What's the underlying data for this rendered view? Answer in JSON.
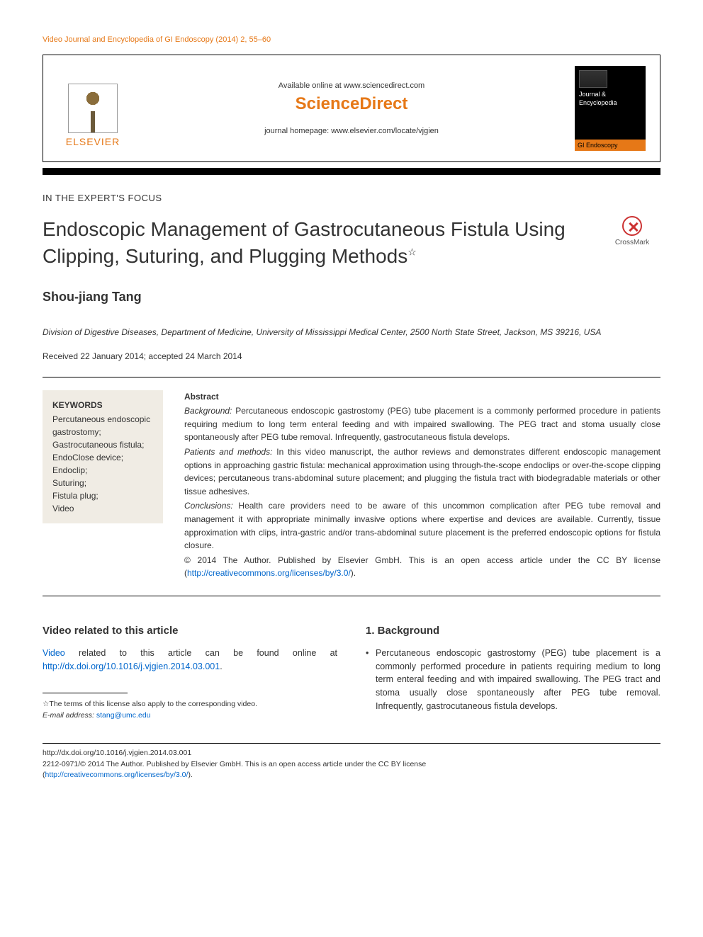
{
  "journal_ref": {
    "name": "Video Journal and Encyclopedia of GI Endoscopy",
    "year": "(2014)",
    "volume": "2",
    "pages": "55–60"
  },
  "publisher_bar": {
    "available": "Available online at www.sciencedirect.com",
    "brand": "ScienceDirect",
    "homepage_label": "journal homepage:",
    "homepage_url": "www.elsevier.com/locate/vjgien",
    "elsevier": "ELSEVIER",
    "cover_line1": "Journal &",
    "cover_line2": "Encyclopedia",
    "cover_bottom": "GI Endoscopy"
  },
  "section_label": "IN THE EXPERT'S FOCUS",
  "title": "Endoscopic Management of Gastrocutaneous Fistula Using Clipping, Suturing, and Plugging Methods",
  "title_star": "☆",
  "crossmark": "CrossMark",
  "author": "Shou-jiang Tang",
  "affiliation": "Division of Digestive Diseases, Department of Medicine, University of Mississippi Medical Center, 2500 North State Street, Jackson, MS 39216, USA",
  "dates": "Received 22 January 2014; accepted 24 March 2014",
  "keywords": {
    "heading": "KEYWORDS",
    "items": [
      "Percutaneous endoscopic gastrostomy;",
      "Gastrocutaneous fistula;",
      "EndoClose device;",
      "Endoclip;",
      "Suturing;",
      "Fistula plug;",
      "Video"
    ]
  },
  "abstract": {
    "heading": "Abstract",
    "background_label": "Background:",
    "background": "Percutaneous endoscopic gastrostomy (PEG) tube placement is a commonly performed procedure in patients requiring medium to long term enteral feeding and with impaired swallowing. The PEG tract and stoma usually close spontaneously after PEG tube removal. Infrequently, gastrocutaneous fistula develops.",
    "methods_label": "Patients and methods:",
    "methods": "In this video manuscript, the author reviews and demonstrates different endoscopic management options in approaching gastric fistula: mechanical approximation using through-the-scope endoclips or over-the-scope clipping devices; percutaneous trans-abdominal suture placement; and plugging the fistula tract with biodegradable materials or other tissue adhesives.",
    "conclusions_label": "Conclusions:",
    "conclusions": "Health care providers need to be aware of this uncommon complication after PEG tube removal and management it with appropriate minimally invasive options where expertise and devices are available. Currently, tissue approximation with clips, intra-gastric and/or trans-abdominal suture placement is the preferred endoscopic options for fistula closure.",
    "copyright": "© 2014 The Author. Published by Elsevier GmbH. This is an open access article under the CC BY license (",
    "license_url": "http://creativecommons.org/licenses/by/3.0/",
    "copyright_end": ")."
  },
  "video_section": {
    "heading": "Video related to this article",
    "link_word": "Video",
    "text_mid": " related to this article can be found online at ",
    "doi_url": "http://dx.doi.org/10.1016/j.vjgien.2014.03.001",
    "text_end": "."
  },
  "footnotes": {
    "star": "☆",
    "star_text": "The terms of this license also apply to the corresponding video.",
    "email_label": "E-mail address:",
    "email": "stang@umc.edu"
  },
  "background_section": {
    "heading": "1.   Background",
    "bullet": "Percutaneous endoscopic gastrostomy (PEG) tube placement is a commonly performed procedure in patients requiring medium to long term enteral feeding and with impaired swallowing. The PEG tract and stoma usually close spontaneously after PEG tube removal. Infrequently, gastrocutaneous fistula develops."
  },
  "footer": {
    "doi": "http://dx.doi.org/10.1016/j.vjgien.2014.03.001",
    "issn_line": "2212-0971/© 2014 The Author. Published by Elsevier GmbH. This is an open access article under the CC BY license",
    "license_url": "http://creativecommons.org/licenses/by/3.0/",
    "paren_open": "(",
    "paren_close": ")."
  },
  "colors": {
    "accent": "#e67817",
    "link": "#0066cc",
    "keywords_bg": "#f0ece4",
    "text": "#333333"
  }
}
